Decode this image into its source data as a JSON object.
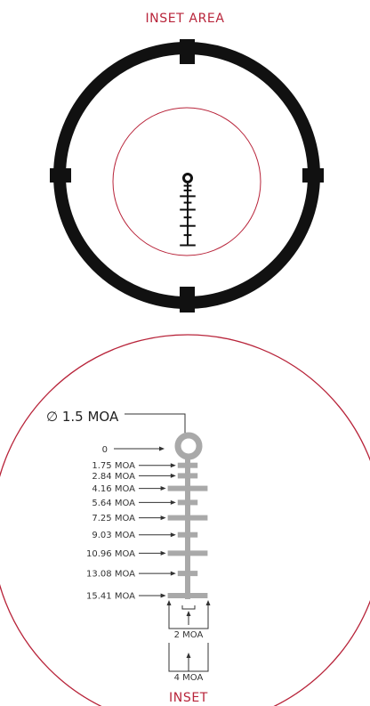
{
  "inset_area_label": "INSET AREA",
  "inset_label": "INSET",
  "dot_label": "∅ 1.5 MOA",
  "center_label": "0",
  "drop_marks": [
    {
      "moa": 1.75,
      "label": "1.75 MOA",
      "width": 2
    },
    {
      "moa": 2.84,
      "label": "2.84 MOA",
      "width": 2
    },
    {
      "moa": 4.16,
      "label": "4.16 MOA",
      "width": 4
    },
    {
      "moa": 5.64,
      "label": "5.64 MOA",
      "width": 2
    },
    {
      "moa": 7.25,
      "label": "7.25 MOA",
      "width": 4
    },
    {
      "moa": 9.03,
      "label": "9.03 MOA",
      "width": 2
    },
    {
      "moa": 10.96,
      "label": "10.96 MOA",
      "width": 4
    },
    {
      "moa": 13.08,
      "label": "13.08 MOA",
      "width": 2
    },
    {
      "moa": 15.41,
      "label": "15.41 MOA",
      "width": 4
    }
  ],
  "brace_inner_label": "2 MOA",
  "brace_outer_label": "4 MOA",
  "colors": {
    "accent_red": "#b8243a",
    "reticle_black": "#111111",
    "reticle_gray": "#a9a9a9"
  }
}
